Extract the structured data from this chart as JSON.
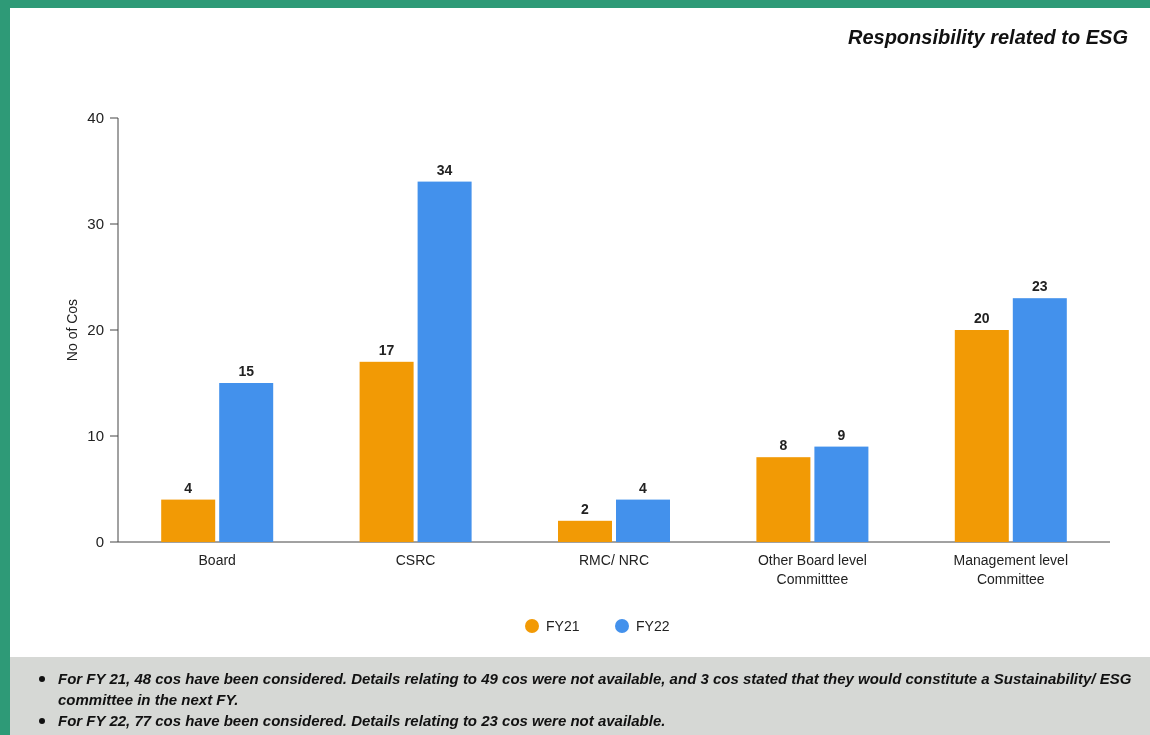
{
  "chart_data": {
    "type": "bar",
    "title": "Responsibility related to ESG",
    "ylabel": "No of Cos",
    "categories": [
      "Board",
      "CSRC",
      "RMC/ NRC",
      "Other Board level Committtee",
      "Management level Committee"
    ],
    "series": [
      {
        "name": "FY21",
        "color": "#f29a05",
        "values": [
          4,
          17,
          2,
          8,
          20
        ]
      },
      {
        "name": "FY22",
        "color": "#4391ec",
        "values": [
          15,
          34,
          4,
          9,
          23
        ]
      }
    ],
    "ylim": [
      0,
      40
    ],
    "yticks": [
      0,
      10,
      20,
      30,
      40
    ],
    "grid": false,
    "legend": "bottom",
    "data_labels": true,
    "annotations": [
      "For FY 21, 48 cos have been considered. Details relating to 49 cos were not available, and 3 cos stated that they would constitute a Sustainability/ ESG committee in the next FY.",
      "For FY 22, 77 cos have been considered. Details relating to 23 cos were not available."
    ]
  }
}
